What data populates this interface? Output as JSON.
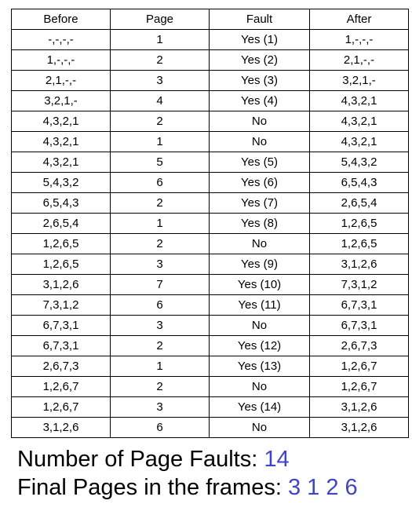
{
  "table": {
    "headers": {
      "before": "Before",
      "page": "Page",
      "fault": "Fault",
      "after": "After"
    },
    "rows": [
      {
        "before": "-,-,-,-",
        "page": "1",
        "fault": "Yes (1)",
        "after": "1,-,-,-"
      },
      {
        "before": "1,-,-,-",
        "page": "2",
        "fault": "Yes (2)",
        "after": "2,1,-,-"
      },
      {
        "before": "2,1,-,-",
        "page": "3",
        "fault": "Yes (3)",
        "after": "3,2,1,-"
      },
      {
        "before": "3,2,1,-",
        "page": "4",
        "fault": "Yes (4)",
        "after": "4,3,2,1"
      },
      {
        "before": "4,3,2,1",
        "page": "2",
        "fault": "No",
        "after": "4,3,2,1"
      },
      {
        "before": "4,3,2,1",
        "page": "1",
        "fault": "No",
        "after": "4,3,2,1"
      },
      {
        "before": "4,3,2,1",
        "page": "5",
        "fault": "Yes (5)",
        "after": "5,4,3,2"
      },
      {
        "before": "5,4,3,2",
        "page": "6",
        "fault": "Yes (6)",
        "after": "6,5,4,3"
      },
      {
        "before": "6,5,4,3",
        "page": "2",
        "fault": "Yes (7)",
        "after": "2,6,5,4"
      },
      {
        "before": "2,6,5,4",
        "page": "1",
        "fault": "Yes (8)",
        "after": "1,2,6,5"
      },
      {
        "before": "1,2,6,5",
        "page": "2",
        "fault": "No",
        "after": "1,2,6,5"
      },
      {
        "before": "1,2,6,5",
        "page": "3",
        "fault": "Yes (9)",
        "after": "3,1,2,6"
      },
      {
        "before": "3,1,2,6",
        "page": "7",
        "fault": "Yes (10)",
        "after": "7,3,1,2"
      },
      {
        "before": "7,3,1,2",
        "page": "6",
        "fault": "Yes (11)",
        "after": "6,7,3,1"
      },
      {
        "before": "6,7,3,1",
        "page": "3",
        "fault": "No",
        "after": "6,7,3,1"
      },
      {
        "before": "6,7,3,1",
        "page": "2",
        "fault": "Yes (12)",
        "after": "2,6,7,3"
      },
      {
        "before": "2,6,7,3",
        "page": "1",
        "fault": "Yes (13)",
        "after": "1,2,6,7"
      },
      {
        "before": "1,2,6,7",
        "page": "2",
        "fault": "No",
        "after": "1,2,6,7"
      },
      {
        "before": "1,2,6,7",
        "page": "3",
        "fault": "Yes (14)",
        "after": "3,1,2,6"
      },
      {
        "before": "3,1,2,6",
        "page": "6",
        "fault": "No",
        "after": "3,1,2,6"
      }
    ]
  },
  "summary": {
    "faults_label": "Number of Page Faults:",
    "faults_value": "14",
    "final_label": "Final Pages in the frames:",
    "final_value": "3 1 2 6"
  },
  "colors": {
    "accent": "#3f45c8",
    "text": "#000000",
    "border": "#000000",
    "background": "#ffffff"
  }
}
